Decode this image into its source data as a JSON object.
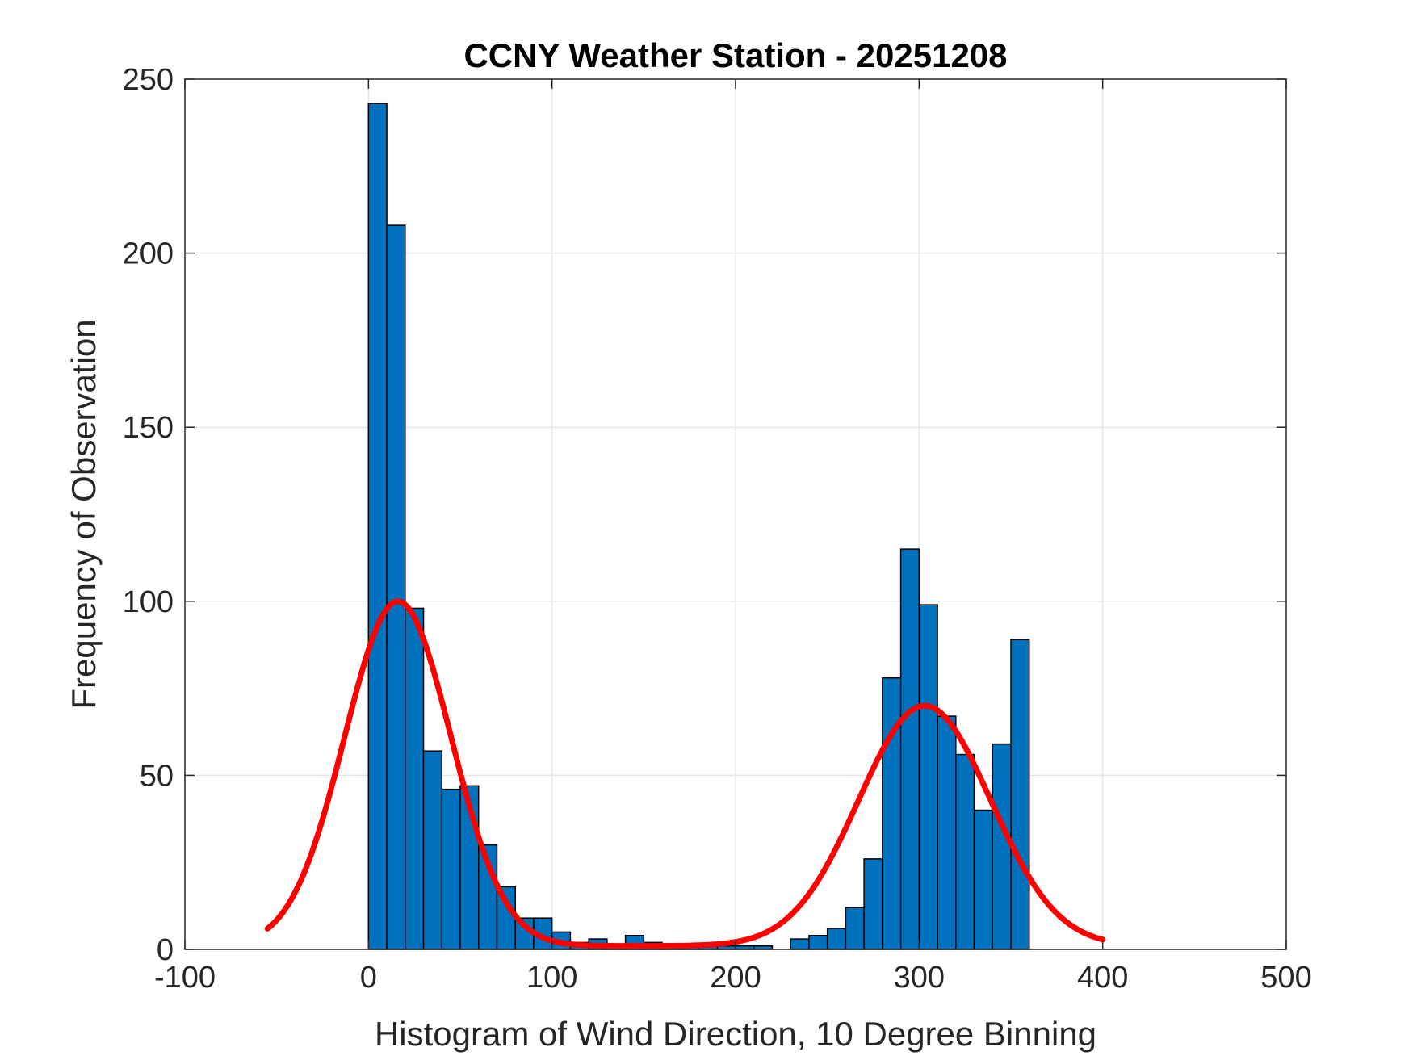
{
  "chart_data": {
    "type": "bar",
    "title": "CCNY Weather Station - 20251208",
    "xlabel": "Histogram of Wind Direction, 10 Degree Binning",
    "ylabel": "Frequency of Observation",
    "xlim": [
      -100,
      500
    ],
    "ylim": [
      0,
      250
    ],
    "xticks": [
      "-100",
      "0",
      "100",
      "200",
      "300",
      "400",
      "500"
    ],
    "yticks": [
      "0",
      "50",
      "100",
      "150",
      "200",
      "250"
    ],
    "grid": true,
    "bin_width": 10,
    "bins": [
      {
        "x0": 0,
        "value": 243
      },
      {
        "x0": 10,
        "value": 208
      },
      {
        "x0": 20,
        "value": 98
      },
      {
        "x0": 30,
        "value": 57
      },
      {
        "x0": 40,
        "value": 46
      },
      {
        "x0": 50,
        "value": 47
      },
      {
        "x0": 60,
        "value": 30
      },
      {
        "x0": 70,
        "value": 18
      },
      {
        "x0": 80,
        "value": 9
      },
      {
        "x0": 90,
        "value": 9
      },
      {
        "x0": 100,
        "value": 5
      },
      {
        "x0": 110,
        "value": 2
      },
      {
        "x0": 120,
        "value": 3
      },
      {
        "x0": 130,
        "value": 1
      },
      {
        "x0": 140,
        "value": 4
      },
      {
        "x0": 150,
        "value": 2
      },
      {
        "x0": 160,
        "value": 1
      },
      {
        "x0": 170,
        "value": 1
      },
      {
        "x0": 180,
        "value": 1
      },
      {
        "x0": 190,
        "value": 1
      },
      {
        "x0": 200,
        "value": 1
      },
      {
        "x0": 210,
        "value": 1
      },
      {
        "x0": 220,
        "value": 0
      },
      {
        "x0": 230,
        "value": 3
      },
      {
        "x0": 240,
        "value": 4
      },
      {
        "x0": 250,
        "value": 6
      },
      {
        "x0": 260,
        "value": 12
      },
      {
        "x0": 270,
        "value": 26
      },
      {
        "x0": 280,
        "value": 78
      },
      {
        "x0": 290,
        "value": 115
      },
      {
        "x0": 300,
        "value": 99
      },
      {
        "x0": 310,
        "value": 67
      },
      {
        "x0": 320,
        "value": 56
      },
      {
        "x0": 330,
        "value": 40
      },
      {
        "x0": 340,
        "value": 59
      },
      {
        "x0": 350,
        "value": 89
      }
    ],
    "fit_curve": {
      "x_range": [
        -55,
        400
      ],
      "components": [
        {
          "amplitude": 99,
          "mean": 16,
          "sigma": 29
        },
        {
          "amplitude": 69,
          "mean": 303,
          "sigma": 36
        }
      ],
      "baseline": 1
    },
    "colors": {
      "bar_fill": "#0072BD",
      "bar_edge": "#000000",
      "fit_line": "#FF0000",
      "grid": "#E6E6E6",
      "axis": "#262626"
    }
  }
}
